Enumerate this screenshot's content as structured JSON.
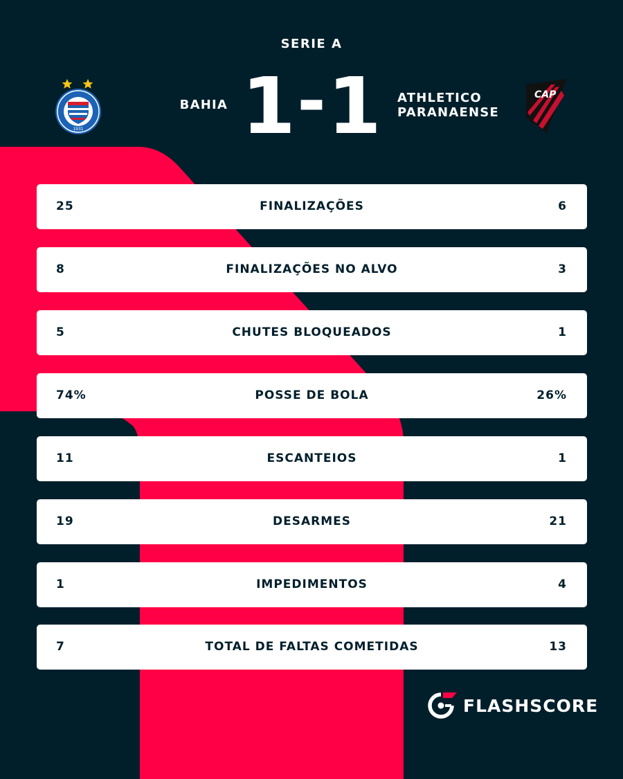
{
  "league": "SERIE A",
  "home_team": {
    "name": "BAHIA",
    "crest_text": "ESPORTE CLUBE BAHIA",
    "crest_year": "1931",
    "crest_icon": "bahia-crest"
  },
  "away_team": {
    "name_line1": "ATHLETICO",
    "name_line2": "PARANAENSE",
    "crest_text": "CAP",
    "crest_icon": "athletico-crest"
  },
  "score": {
    "home": "1",
    "separator": "-",
    "away": "1"
  },
  "stats": [
    {
      "home": "25",
      "label": "FINALIZAÇÕES",
      "away": "6"
    },
    {
      "home": "8",
      "label": "FINALIZAÇÕES NO ALVO",
      "away": "3"
    },
    {
      "home": "5",
      "label": "CHUTES BLOQUEADOS",
      "away": "1"
    },
    {
      "home": "74%",
      "label": "POSSE DE BOLA",
      "away": "26%"
    },
    {
      "home": "11",
      "label": "ESCANTEIOS",
      "away": "1"
    },
    {
      "home": "19",
      "label": "DESARMES",
      "away": "21"
    },
    {
      "home": "1",
      "label": "IMPEDIMENTOS",
      "away": "4"
    },
    {
      "home": "7",
      "label": "TOTAL DE FALTAS COMETIDAS",
      "away": "13"
    }
  ],
  "brand": {
    "name": "FLASHSCORE",
    "icon": "flashscore-logo-icon"
  },
  "colors": {
    "background": "#011f2b",
    "accent": "#ff0046",
    "card": "#ffffff",
    "text_dark": "#011f2b",
    "bahia_blue": "#1b63b5",
    "athletico_red": "#c8102e"
  }
}
